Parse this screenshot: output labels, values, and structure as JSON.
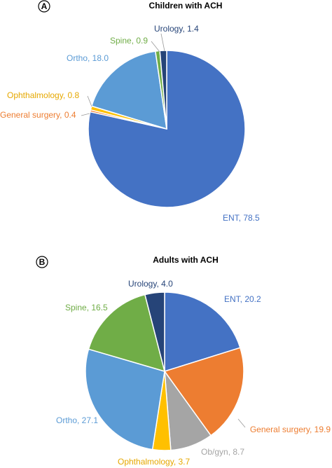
{
  "chart_data": [
    {
      "type": "pie",
      "panel": "A",
      "title": "Children with ACH",
      "values": [
        78.5,
        0.4,
        0.8,
        18.0,
        0.9,
        1.4
      ],
      "value_labels": [
        "ENT, 78.5",
        "General surgery, 0.4",
        "Ophthalmology, 0.8",
        "Ortho, 18.0",
        "Spine, 0.9",
        "Urology, 1.4"
      ],
      "colors": [
        "#4472c4",
        "#ed7d31",
        "#ffc000",
        "#5b9bd5",
        "#70ad47",
        "#264478"
      ]
    },
    {
      "type": "pie",
      "panel": "B",
      "title": "Adults with ACH",
      "values": [
        20.2,
        19.9,
        8.7,
        3.7,
        27.1,
        16.5,
        4.0
      ],
      "value_labels": [
        "ENT, 20.2",
        "General surgery, 19.9",
        "Ob/gyn, 8.7",
        "Ophthalmology, 3.7",
        "Ortho, 27.1",
        "Spine, 16.5",
        "Urology, 4.0"
      ],
      "colors": [
        "#4472c4",
        "#ed7d31",
        "#a5a5a5",
        "#ffc000",
        "#5b9bd5",
        "#70ad47",
        "#264478"
      ]
    }
  ]
}
